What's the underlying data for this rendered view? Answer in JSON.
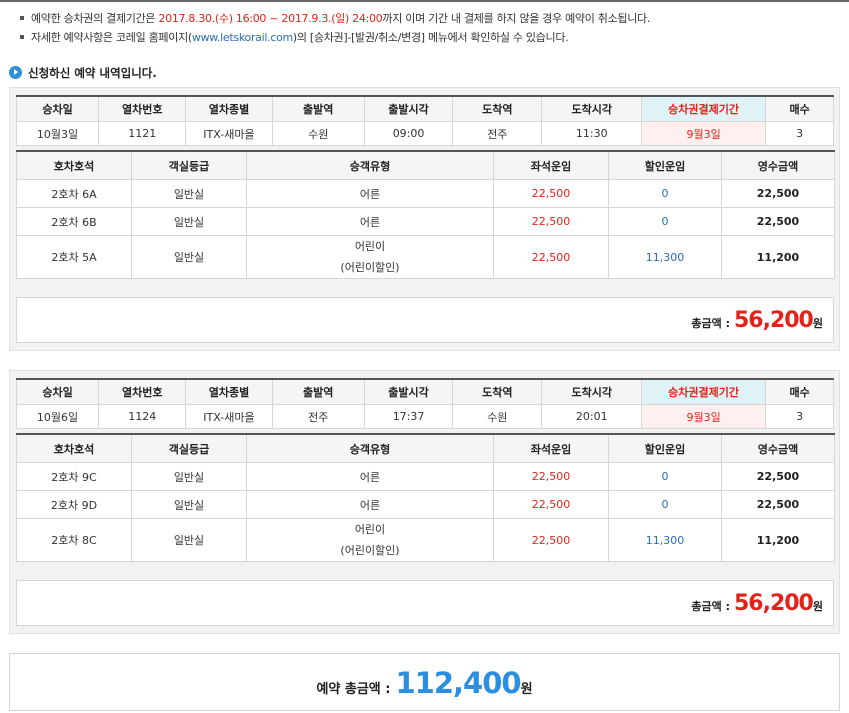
{
  "notices": {
    "line1": {
      "prefix": "예약한 승차권의 결제기간은 ",
      "period": "2017.8.30.(수) 16:00 ~ 2017.9.3.(일) 24:00",
      "suffix": "까지 이며 기간 내 결제를 하지 않을 경우 예약이 취소됩니다."
    },
    "line2": {
      "prefix": "자세한 예약사항은 코레일 홈페이지(",
      "link": "www.letskorail.com",
      "suffix": ")의 [승차권]-[발권/취소/변경] 메뉴에서 확인하실 수 있습니다."
    }
  },
  "section_title": "신청하신 예약 내역입니다.",
  "train_headers": [
    "승차일",
    "열차번호",
    "열차종별",
    "출발역",
    "출발시각",
    "도착역",
    "도착시각",
    "승차권결제기간",
    "매수"
  ],
  "seat_headers": [
    "호차호석",
    "객실등급",
    "승객유형",
    "좌석운임",
    "할인운임",
    "영수금액"
  ],
  "total_label": "총금액 :",
  "won": "원",
  "reservations": [
    {
      "train": {
        "date": "10월3일",
        "train_no": "1121",
        "train_type": "ITX-새마을",
        "departure": "수원",
        "dep_time": "09:00",
        "arrival": "전주",
        "arr_time": "11:30",
        "payment_deadline": "9월3일",
        "count": "3"
      },
      "seats": [
        {
          "seat": "2호차 6A",
          "class": "일반실",
          "type": "어른",
          "type_note": "",
          "fare": "22,500",
          "discount": "0",
          "paid": "22,500"
        },
        {
          "seat": "2호차 6B",
          "class": "일반실",
          "type": "어른",
          "type_note": "",
          "fare": "22,500",
          "discount": "0",
          "paid": "22,500"
        },
        {
          "seat": "2호차 5A",
          "class": "일반실",
          "type": "어린이",
          "type_note": "(어린이할인)",
          "fare": "22,500",
          "discount": "11,300",
          "paid": "11,200"
        }
      ],
      "total": "56,200"
    },
    {
      "train": {
        "date": "10월6일",
        "train_no": "1124",
        "train_type": "ITX-새마을",
        "departure": "전주",
        "dep_time": "17:37",
        "arrival": "수원",
        "arr_time": "20:01",
        "payment_deadline": "9월3일",
        "count": "3"
      },
      "seats": [
        {
          "seat": "2호차 9C",
          "class": "일반실",
          "type": "어른",
          "type_note": "",
          "fare": "22,500",
          "discount": "0",
          "paid": "22,500"
        },
        {
          "seat": "2호차 9D",
          "class": "일반실",
          "type": "어른",
          "type_note": "",
          "fare": "22,500",
          "discount": "0",
          "paid": "22,500"
        },
        {
          "seat": "2호차 8C",
          "class": "일반실",
          "type": "어린이",
          "type_note": "(어린이할인)",
          "fare": "22,500",
          "discount": "11,300",
          "paid": "11,200"
        }
      ],
      "total": "56,200"
    }
  ],
  "grand_total": {
    "label": "예약 총금액 :",
    "value": "112,400",
    "won": "원"
  },
  "colors": {
    "accent_red": "#e2231a",
    "accent_blue": "#2a8fe0",
    "deadline_header_bg": "#dff3f7",
    "deadline_cell_bg": "#fff0f0"
  },
  "icons": {
    "section_icon": "circle-play-icon",
    "bullet": "square-bullet-icon"
  }
}
